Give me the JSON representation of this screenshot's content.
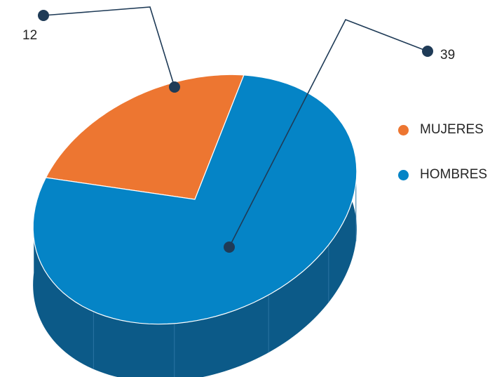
{
  "chart_data": {
    "type": "pie",
    "style": "3d",
    "categories": [
      "MUJERES",
      "HOMBRES"
    ],
    "values": [
      12,
      39
    ],
    "colors": [
      "#ed7631",
      "#0584c6"
    ],
    "shadow_color": "#0c5a88",
    "leader_color": "#1f3b57",
    "value_labels": [
      "12",
      "39"
    ],
    "legend_position": "right"
  },
  "legend": {
    "items": [
      {
        "label": "MUJERES",
        "color": "#ed7631"
      },
      {
        "label": "HOMBRES",
        "color": "#0584c6"
      }
    ]
  }
}
